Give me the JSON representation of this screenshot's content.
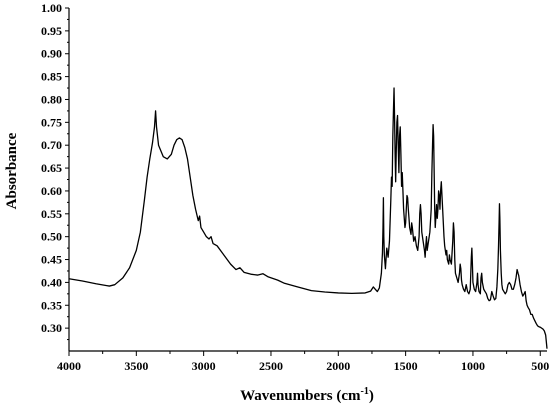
{
  "chart_data": {
    "type": "line",
    "xlabel": "Wavenumbers (cm",
    "xlabel_sup": "-1",
    "xlabel_end": ")",
    "ylabel": "Absorbance",
    "xlim": [
      4000,
      450
    ],
    "ylim": [
      0.25,
      1.0
    ],
    "x_reversed": true,
    "grid": false,
    "x_ticks": [
      4000,
      3500,
      3000,
      2500,
      2000,
      1500,
      1000,
      500
    ],
    "x_tick_labels": [
      "4000",
      "3500",
      "3000",
      "2500",
      "2000",
      "1500",
      "1000",
      "500"
    ],
    "y_ticks": [
      0.3,
      0.35,
      0.4,
      0.45,
      0.5,
      0.55,
      0.6,
      0.65,
      0.7,
      0.75,
      0.8,
      0.85,
      0.9,
      0.95,
      1.0
    ],
    "y_tick_labels": [
      "0.30",
      "0.35",
      "0.40",
      "0.45",
      "0.50",
      "0.55",
      "0.60",
      "0.65",
      "0.70",
      "0.75",
      "0.80",
      "0.85",
      "0.90",
      "0.95",
      "1.00"
    ],
    "series": [
      {
        "points": [
          [
            4000,
            0.408
          ],
          [
            3900,
            0.403
          ],
          [
            3800,
            0.397
          ],
          [
            3720,
            0.393
          ],
          [
            3700,
            0.392
          ],
          [
            3660,
            0.395
          ],
          [
            3600,
            0.41
          ],
          [
            3550,
            0.432
          ],
          [
            3500,
            0.47
          ],
          [
            3470,
            0.51
          ],
          [
            3440,
            0.58
          ],
          [
            3420,
            0.63
          ],
          [
            3400,
            0.67
          ],
          [
            3380,
            0.705
          ],
          [
            3365,
            0.74
          ],
          [
            3357,
            0.775
          ],
          [
            3350,
            0.74
          ],
          [
            3335,
            0.7
          ],
          [
            3300,
            0.675
          ],
          [
            3270,
            0.67
          ],
          [
            3240,
            0.68
          ],
          [
            3220,
            0.7
          ],
          [
            3200,
            0.712
          ],
          [
            3180,
            0.716
          ],
          [
            3160,
            0.712
          ],
          [
            3140,
            0.695
          ],
          [
            3120,
            0.67
          ],
          [
            3100,
            0.63
          ],
          [
            3080,
            0.59
          ],
          [
            3060,
            0.56
          ],
          [
            3040,
            0.535
          ],
          [
            3030,
            0.545
          ],
          [
            3020,
            0.52
          ],
          [
            3000,
            0.51
          ],
          [
            2980,
            0.5
          ],
          [
            2960,
            0.495
          ],
          [
            2945,
            0.5
          ],
          [
            2930,
            0.485
          ],
          [
            2900,
            0.48
          ],
          [
            2850,
            0.46
          ],
          [
            2800,
            0.44
          ],
          [
            2760,
            0.428
          ],
          [
            2730,
            0.432
          ],
          [
            2700,
            0.422
          ],
          [
            2650,
            0.418
          ],
          [
            2600,
            0.416
          ],
          [
            2560,
            0.419
          ],
          [
            2520,
            0.412
          ],
          [
            2450,
            0.405
          ],
          [
            2400,
            0.398
          ],
          [
            2300,
            0.39
          ],
          [
            2200,
            0.382
          ],
          [
            2100,
            0.379
          ],
          [
            2000,
            0.377
          ],
          [
            1900,
            0.376
          ],
          [
            1800,
            0.377
          ],
          [
            1760,
            0.381
          ],
          [
            1740,
            0.39
          ],
          [
            1725,
            0.385
          ],
          [
            1710,
            0.38
          ],
          [
            1695,
            0.388
          ],
          [
            1680,
            0.42
          ],
          [
            1672,
            0.465
          ],
          [
            1668,
            0.52
          ],
          [
            1665,
            0.585
          ],
          [
            1662,
            0.5
          ],
          [
            1658,
            0.46
          ],
          [
            1650,
            0.43
          ],
          [
            1640,
            0.475
          ],
          [
            1630,
            0.455
          ],
          [
            1620,
            0.49
          ],
          [
            1610,
            0.58
          ],
          [
            1605,
            0.63
          ],
          [
            1600,
            0.61
          ],
          [
            1595,
            0.72
          ],
          [
            1590,
            0.78
          ],
          [
            1586,
            0.825
          ],
          [
            1582,
            0.76
          ],
          [
            1578,
            0.68
          ],
          [
            1574,
            0.62
          ],
          [
            1570,
            0.68
          ],
          [
            1565,
            0.75
          ],
          [
            1560,
            0.765
          ],
          [
            1555,
            0.7
          ],
          [
            1550,
            0.64
          ],
          [
            1545,
            0.72
          ],
          [
            1540,
            0.74
          ],
          [
            1535,
            0.68
          ],
          [
            1530,
            0.61
          ],
          [
            1525,
            0.64
          ],
          [
            1520,
            0.6
          ],
          [
            1515,
            0.56
          ],
          [
            1510,
            0.54
          ],
          [
            1505,
            0.52
          ],
          [
            1500,
            0.53
          ],
          [
            1495,
            0.56
          ],
          [
            1490,
            0.59
          ],
          [
            1485,
            0.585
          ],
          [
            1480,
            0.56
          ],
          [
            1475,
            0.54
          ],
          [
            1470,
            0.52
          ],
          [
            1460,
            0.505
          ],
          [
            1455,
            0.53
          ],
          [
            1450,
            0.52
          ],
          [
            1440,
            0.49
          ],
          [
            1430,
            0.5
          ],
          [
            1420,
            0.48
          ],
          [
            1410,
            0.47
          ],
          [
            1400,
            0.5
          ],
          [
            1395,
            0.55
          ],
          [
            1390,
            0.57
          ],
          [
            1385,
            0.55
          ],
          [
            1380,
            0.51
          ],
          [
            1370,
            0.49
          ],
          [
            1360,
            0.47
          ],
          [
            1355,
            0.455
          ],
          [
            1350,
            0.48
          ],
          [
            1345,
            0.5
          ],
          [
            1340,
            0.47
          ],
          [
            1330,
            0.49
          ],
          [
            1320,
            0.51
          ],
          [
            1310,
            0.56
          ],
          [
            1305,
            0.64
          ],
          [
            1300,
            0.7
          ],
          [
            1296,
            0.745
          ],
          [
            1292,
            0.72
          ],
          [
            1288,
            0.64
          ],
          [
            1284,
            0.56
          ],
          [
            1280,
            0.52
          ],
          [
            1275,
            0.545
          ],
          [
            1270,
            0.57
          ],
          [
            1265,
            0.54
          ],
          [
            1260,
            0.56
          ],
          [
            1255,
            0.6
          ],
          [
            1250,
            0.59
          ],
          [
            1245,
            0.56
          ],
          [
            1240,
            0.6
          ],
          [
            1235,
            0.62
          ],
          [
            1230,
            0.59
          ],
          [
            1225,
            0.56
          ],
          [
            1220,
            0.53
          ],
          [
            1215,
            0.5
          ],
          [
            1210,
            0.48
          ],
          [
            1205,
            0.47
          ],
          [
            1200,
            0.46
          ],
          [
            1195,
            0.47
          ],
          [
            1190,
            0.45
          ],
          [
            1180,
            0.44
          ],
          [
            1175,
            0.46
          ],
          [
            1170,
            0.45
          ],
          [
            1160,
            0.44
          ],
          [
            1150,
            0.49
          ],
          [
            1145,
            0.53
          ],
          [
            1140,
            0.51
          ],
          [
            1135,
            0.45
          ],
          [
            1130,
            0.42
          ],
          [
            1120,
            0.41
          ],
          [
            1110,
            0.4
          ],
          [
            1100,
            0.42
          ],
          [
            1095,
            0.44
          ],
          [
            1090,
            0.43
          ],
          [
            1085,
            0.405
          ],
          [
            1080,
            0.395
          ],
          [
            1070,
            0.385
          ],
          [
            1060,
            0.38
          ],
          [
            1050,
            0.395
          ],
          [
            1040,
            0.38
          ],
          [
            1030,
            0.375
          ],
          [
            1020,
            0.385
          ],
          [
            1012,
            0.455
          ],
          [
            1008,
            0.475
          ],
          [
            1004,
            0.44
          ],
          [
            1000,
            0.4
          ],
          [
            990,
            0.385
          ],
          [
            980,
            0.38
          ],
          [
            970,
            0.4
          ],
          [
            966,
            0.42
          ],
          [
            962,
            0.395
          ],
          [
            955,
            0.38
          ],
          [
            945,
            0.375
          ],
          [
            940,
            0.41
          ],
          [
            935,
            0.42
          ],
          [
            930,
            0.4
          ],
          [
            920,
            0.385
          ],
          [
            910,
            0.38
          ],
          [
            900,
            0.375
          ],
          [
            890,
            0.365
          ],
          [
            880,
            0.36
          ],
          [
            870,
            0.362
          ],
          [
            860,
            0.38
          ],
          [
            850,
            0.37
          ],
          [
            840,
            0.362
          ],
          [
            830,
            0.365
          ],
          [
            822,
            0.39
          ],
          [
            815,
            0.43
          ],
          [
            810,
            0.48
          ],
          [
            806,
            0.53
          ],
          [
            803,
            0.572
          ],
          [
            800,
            0.54
          ],
          [
            796,
            0.47
          ],
          [
            790,
            0.42
          ],
          [
            785,
            0.395
          ],
          [
            780,
            0.385
          ],
          [
            770,
            0.38
          ],
          [
            760,
            0.375
          ],
          [
            750,
            0.38
          ],
          [
            740,
            0.395
          ],
          [
            730,
            0.4
          ],
          [
            720,
            0.395
          ],
          [
            710,
            0.385
          ],
          [
            700,
            0.385
          ],
          [
            690,
            0.395
          ],
          [
            680,
            0.41
          ],
          [
            672,
            0.428
          ],
          [
            665,
            0.42
          ],
          [
            660,
            0.415
          ],
          [
            650,
            0.395
          ],
          [
            640,
            0.38
          ],
          [
            630,
            0.37
          ],
          [
            620,
            0.375
          ],
          [
            612,
            0.38
          ],
          [
            605,
            0.36
          ],
          [
            598,
            0.35
          ],
          [
            590,
            0.345
          ],
          [
            580,
            0.34
          ],
          [
            570,
            0.33
          ],
          [
            560,
            0.33
          ],
          [
            550,
            0.322
          ],
          [
            540,
            0.316
          ],
          [
            530,
            0.31
          ],
          [
            520,
            0.305
          ],
          [
            510,
            0.303
          ],
          [
            500,
            0.302
          ],
          [
            490,
            0.3
          ],
          [
            480,
            0.298
          ],
          [
            470,
            0.294
          ],
          [
            460,
            0.285
          ],
          [
            455,
            0.27
          ],
          [
            450,
            0.255
          ]
        ]
      }
    ]
  }
}
